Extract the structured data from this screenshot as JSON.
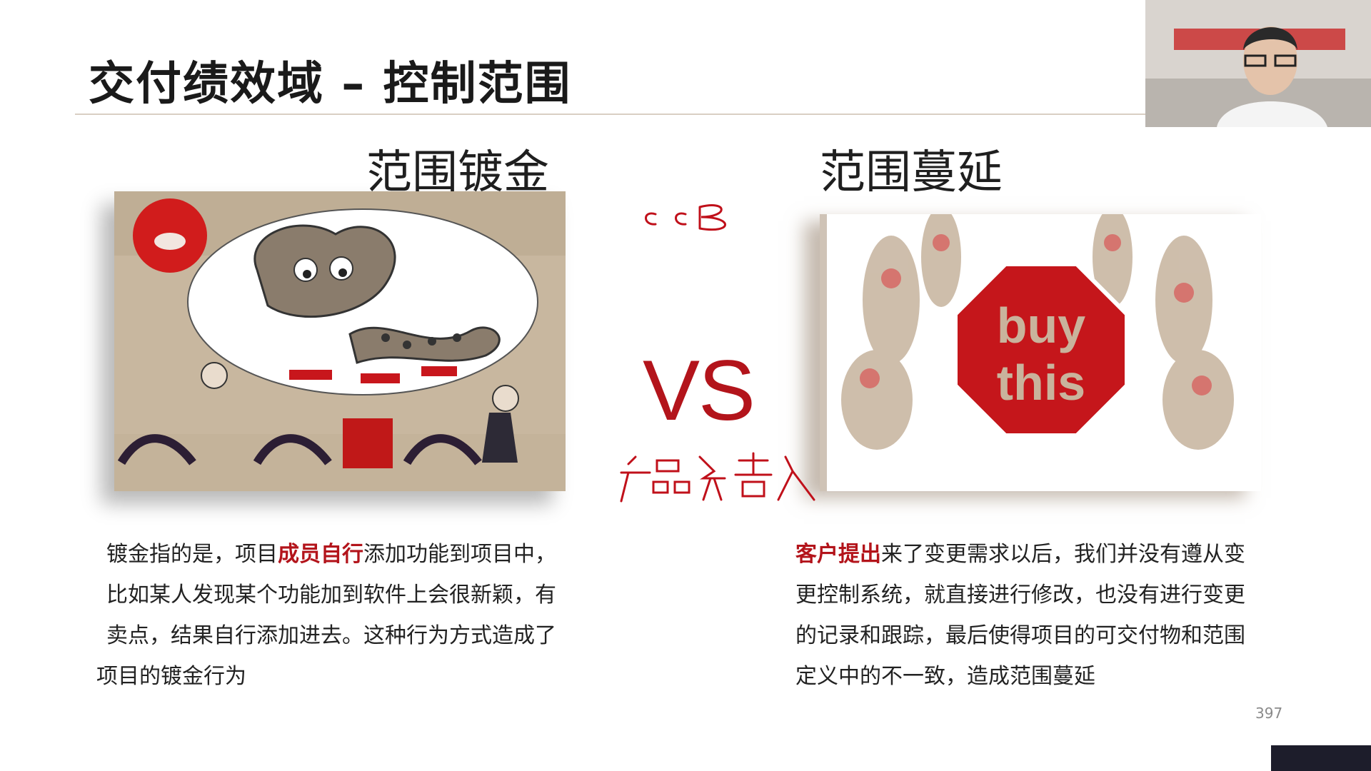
{
  "slide": {
    "title": "交付绩效域 – 控制范围",
    "left_heading": "范围镀金",
    "right_heading": "范围蔓延",
    "vs": "VS",
    "left_paragraph": {
      "line1_pre": "镀金指的是，项目",
      "line1_hl": "成员自行",
      "line1_post": "添加功能到项目中，",
      "line2": "比如某人发现某个功能加到软件上会很新颖，有",
      "line3": "卖点，结果自行添加进去。这种行为方式造成了",
      "line4": "项目的镀金行为"
    },
    "right_paragraph": {
      "line1_hl": "客户提出",
      "line1_post": "来了变更需求以后，我们并没有遵从变",
      "line2": "更控制系统，就直接进行修改，也没有进行变更",
      "line3": "的记录和跟踪，最后使得项目的可交付物和范围",
      "line4": "定义中的不一致，造成范围蔓延"
    },
    "sign_text": {
      "word1": "buy",
      "word2": "this"
    },
    "handwritten_notes": [
      "ccB",
      "产品负责人"
    ],
    "page_number": "397"
  },
  "colors": {
    "accent_red": "#b3141b",
    "rule": "#d9cfc3",
    "cartoon_bg": "#c6b49b"
  }
}
